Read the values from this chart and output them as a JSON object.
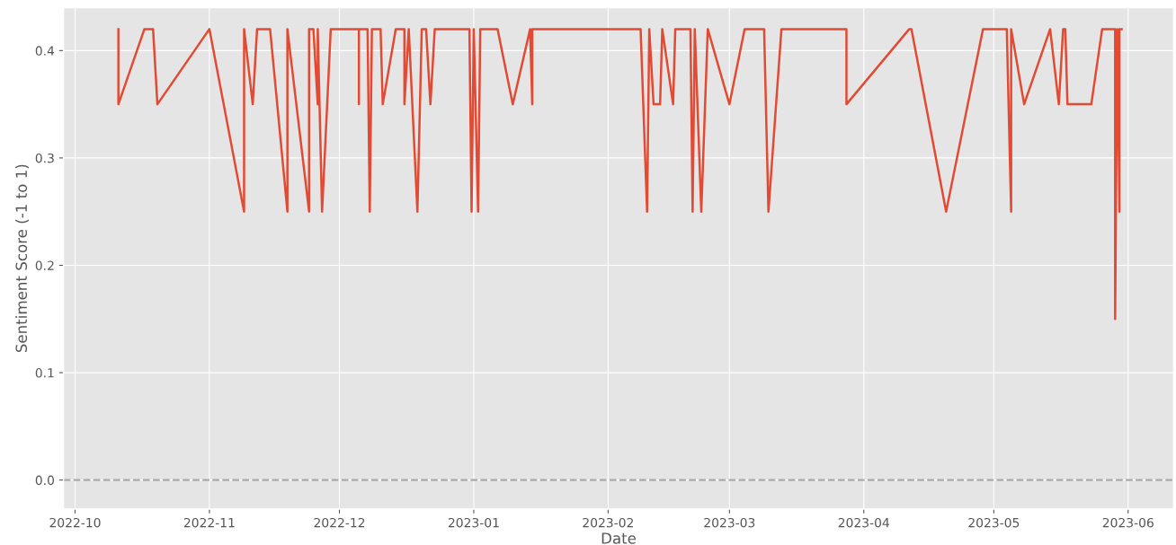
{
  "chart_data": {
    "type": "line",
    "xlabel": "Date",
    "ylabel": "Sentiment Score (-1 to 1)",
    "x": [
      "2022-10-11",
      "2022-10-11",
      "2022-10-17",
      "2022-10-19",
      "2022-10-20",
      "2022-11-01",
      "2022-11-09",
      "2022-11-09",
      "2022-11-11",
      "2022-11-12",
      "2022-11-15",
      "2022-11-19",
      "2022-11-19",
      "2022-11-24",
      "2022-11-24",
      "2022-11-25",
      "2022-11-26",
      "2022-11-26",
      "2022-11-27",
      "2022-11-29",
      "2022-12-05T12:00",
      "2022-12-05T12:00",
      "2022-12-05T12:00",
      "2022-12-07T12:00",
      "2022-12-08",
      "2022-12-08T12:00",
      "2022-12-10T12:00",
      "2022-12-11",
      "2022-12-14",
      "2022-12-16",
      "2022-12-16",
      "2022-12-17",
      "2022-12-19",
      "2022-12-20",
      "2022-12-21",
      "2022-12-22",
      "2022-12-23",
      "2022-12-31",
      "2022-12-31T12:00",
      "2023-01-01",
      "2023-01-02",
      "2023-01-02T12:00",
      "2023-01-06T12:00",
      "2023-01-10",
      "2023-01-14",
      "2023-01-14T12:00",
      "2023-01-14T12:00",
      "2023-02-08T12:00",
      "2023-02-10",
      "2023-02-10T12:00",
      "2023-02-11T12:00",
      "2023-02-13",
      "2023-02-13T12:00",
      "2023-02-16",
      "2023-02-16T12:00",
      "2023-02-20",
      "2023-02-20T12:00",
      "2023-02-21",
      "2023-02-22T12:00",
      "2023-02-24",
      "2023-03-01",
      "2023-03-04T12:00",
      "2023-03-09",
      "2023-03-10",
      "2023-03-13",
      "2023-03-28",
      "2023-03-28",
      "2023-04-11T12:00",
      "2023-04-12",
      "2023-04-20",
      "2023-04-28T12:00",
      "2023-05-04",
      "2023-05-05",
      "2023-05-05",
      "2023-05-08",
      "2023-05-14",
      "2023-05-16",
      "2023-05-17",
      "2023-05-17T12:00",
      "2023-05-18",
      "2023-05-23T12:00",
      "2023-05-26",
      "2023-05-29",
      "2023-05-29",
      "2023-05-29T12:00",
      "2023-05-30",
      "2023-05-30",
      "2023-05-30T12:00"
    ],
    "series": [
      {
        "color": "#e24a33",
        "values": [
          0.42,
          0.35,
          0.42,
          0.42,
          0.35,
          0.42,
          0.25,
          0.42,
          0.35,
          0.42,
          0.42,
          0.25,
          0.42,
          0.25,
          0.42,
          0.42,
          0.35,
          0.42,
          0.25,
          0.42,
          0.42,
          0.35,
          0.42,
          0.42,
          0.25,
          0.42,
          0.42,
          0.35,
          0.42,
          0.42,
          0.35,
          0.42,
          0.25,
          0.42,
          0.42,
          0.35,
          0.42,
          0.42,
          0.25,
          0.42,
          0.25,
          0.42,
          0.42,
          0.35,
          0.42,
          0.35,
          0.42,
          0.42,
          0.25,
          0.42,
          0.35,
          0.35,
          0.42,
          0.35,
          0.42,
          0.42,
          0.25,
          0.42,
          0.25,
          0.42,
          0.35,
          0.42,
          0.42,
          0.25,
          0.42,
          0.42,
          0.35,
          0.42,
          0.42,
          0.25,
          0.42,
          0.42,
          0.25,
          0.42,
          0.35,
          0.42,
          0.35,
          0.42,
          0.42,
          0.35,
          0.35,
          0.42,
          0.42,
          0.15,
          0.42,
          0.25,
          0.42,
          0.42
        ]
      }
    ],
    "xlim": [
      "2022-09-28T08:00",
      "2023-06-11T12:00"
    ],
    "xticks": [
      {
        "value": "2022-10-01",
        "label": "2022-10"
      },
      {
        "value": "2022-11-01",
        "label": "2022-11"
      },
      {
        "value": "2022-12-01",
        "label": "2022-12"
      },
      {
        "value": "2023-01-01",
        "label": "2023-01"
      },
      {
        "value": "2023-02-01",
        "label": "2023-02"
      },
      {
        "value": "2023-03-01",
        "label": "2023-03"
      },
      {
        "value": "2023-04-01",
        "label": "2023-04"
      },
      {
        "value": "2023-05-01",
        "label": "2023-05"
      },
      {
        "value": "2023-06-01",
        "label": "2023-06"
      }
    ],
    "ylim": [
      -0.027,
      0.44
    ],
    "yticks": [
      {
        "value": 0,
        "label": "0.0"
      },
      {
        "value": 0.1,
        "label": "0.1"
      },
      {
        "value": 0.2,
        "label": "0.2"
      },
      {
        "value": 0.3,
        "label": "0.3"
      },
      {
        "value": 0.4,
        "label": "0.4"
      }
    ],
    "ref_lines": [
      {
        "axis": "y",
        "value": 0,
        "color": "#aaaaaa",
        "line_style": "dashed"
      }
    ],
    "grid": true,
    "line_style": "solid"
  }
}
